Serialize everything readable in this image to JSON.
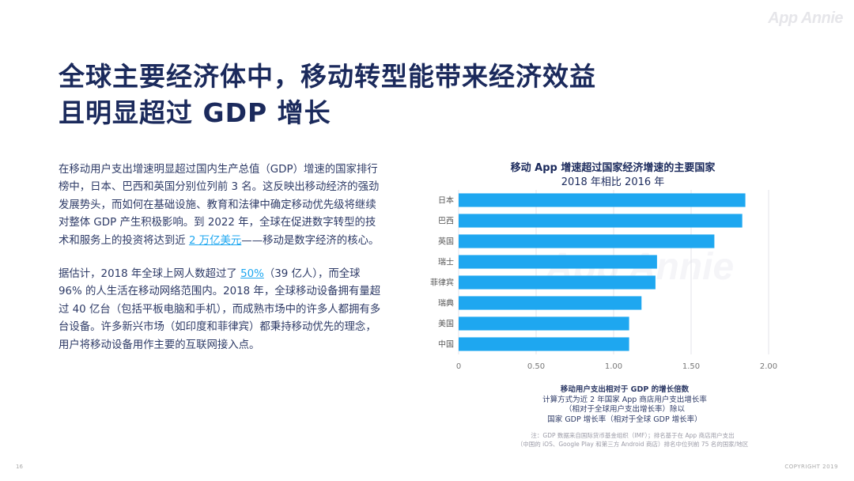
{
  "logo": "App Annie",
  "title": {
    "line1": "全球主要经济体中，移动转型能带来经济效益",
    "line2": "且明显超过 GDP 增长"
  },
  "body": {
    "p1_before": "在移动用户支出增速明显超过国内生产总值（GDP）增速的国家排行榜中，日本、巴西和英国分别位列前 3 名。这反映出移动经济的强劲发展势头，而如何在基础设施、教育和法律中确定移动优先级将继续对整体 GDP 产生积极影响。到 2022 年，全球在促进数字转型的技术和服务上的投资将达到近 ",
    "p1_link": "2 万亿美元",
    "p1_after": "——移动是数字经济的核心。",
    "p2_before": "据估计，2018 年全球上网人数超过了 ",
    "p2_link": "50%",
    "p2_after": "（39 亿人），而全球 96% 的人生活在移动网络范围内。2018 年，全球移动设备拥有量超过 40 亿台（包括平板电脑和手机），而成熟市场中的许多人都拥有多台设备。许多新兴市场（如印度和菲律宾）都秉持移动优先的理念，用户将移动设备用作主要的互联网接入点。"
  },
  "chart_data": {
    "type": "bar",
    "orientation": "horizontal",
    "title": "移动 App 增速超过国家经济增速的主要国家",
    "subtitle": "2018 年相比 2016 年",
    "categories": [
      "日本",
      "巴西",
      "英国",
      "瑞士",
      "菲律宾",
      "瑞典",
      "美国",
      "中国"
    ],
    "values": [
      1.85,
      1.83,
      1.65,
      1.28,
      1.27,
      1.18,
      1.1,
      1.1
    ],
    "xlim": [
      0,
      2.0
    ],
    "xticks": [
      "0",
      "0.50",
      "1.00",
      "1.50",
      "2.00"
    ],
    "xtick_values": [
      0,
      0.5,
      1.0,
      1.5,
      2.0
    ],
    "grid": true,
    "bar_color": "#1ea7f0",
    "xlabel": "移动用户支出相对于 GDP 的增长倍数",
    "xlabel_detail": [
      "计算方式为近 2 年国家 App 商店用户支出增长率",
      "（相对于全球用户支出增长率）除以",
      "国家 GDP 增长率（相对于全球 GDP 增长率）"
    ]
  },
  "note": {
    "line1": "注：GDP 数据来自国际货币基金组织（IMF）；排名基于在 App 商店用户支出",
    "line2": "（中国的 iOS、Google Play 和第三方 Android 商店）排名中位列前 75 名的国家/地区"
  },
  "footer": {
    "page": "16",
    "copyright": "COPYRIGHT 2019"
  }
}
